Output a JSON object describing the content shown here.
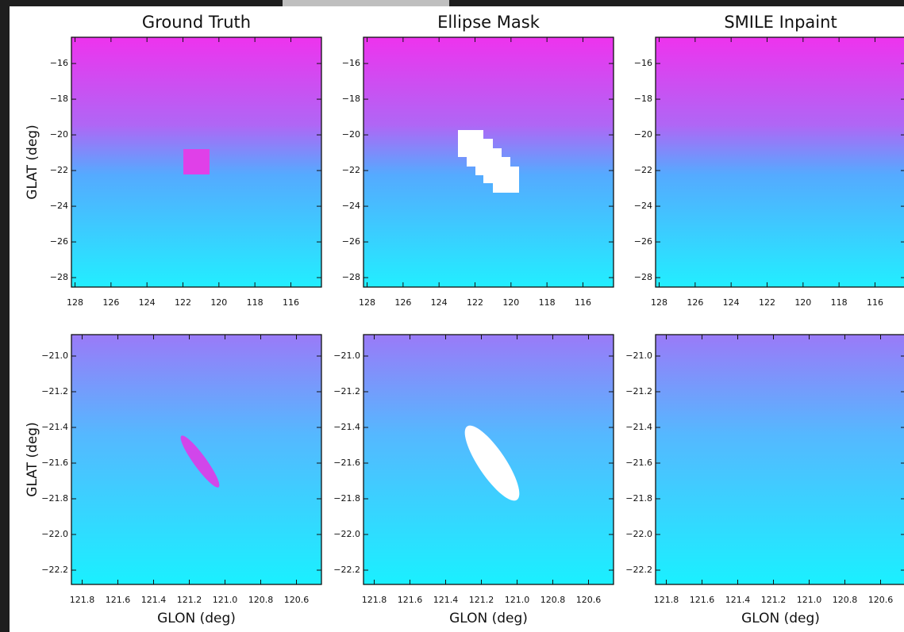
{
  "chart_data": [
    {
      "type": "image",
      "title": "Ground Truth",
      "ylabel": "GLAT (deg)",
      "xlim": [
        128.2,
        114.3
      ],
      "ylim": [
        -28.53,
        -14.53
      ],
      "xticks": [
        128,
        126,
        124,
        122,
        120,
        118,
        116
      ],
      "yticks": [
        {
          "value": -16,
          "label": "−16"
        },
        {
          "value": -18,
          "label": "−18"
        },
        {
          "value": -20,
          "label": "−20"
        },
        {
          "value": -22,
          "label": "−22"
        },
        {
          "value": -24,
          "label": "−24"
        },
        {
          "value": -26,
          "label": "−26"
        },
        {
          "value": -28,
          "label": "−28"
        }
      ]
    },
    {
      "type": "image",
      "title": "Ellipse Mask",
      "xlim": [
        128.2,
        114.3
      ],
      "ylim": [
        -28.53,
        -14.53
      ],
      "xticks": [
        128,
        126,
        124,
        122,
        120,
        118,
        116
      ],
      "yticks": [
        {
          "value": -16,
          "label": "−16"
        },
        {
          "value": -18,
          "label": "−18"
        },
        {
          "value": -20,
          "label": "−20"
        },
        {
          "value": -22,
          "label": "−22"
        },
        {
          "value": -24,
          "label": "−24"
        },
        {
          "value": -26,
          "label": "−26"
        },
        {
          "value": -28,
          "label": "−28"
        }
      ]
    },
    {
      "type": "image",
      "title": "SMILE Inpaint",
      "xlim": [
        128.2,
        114.3
      ],
      "ylim": [
        -28.53,
        -14.53
      ],
      "xticks": [
        128,
        126,
        124,
        122,
        120,
        118,
        116
      ],
      "yticks": [
        {
          "value": -16,
          "label": "−16"
        },
        {
          "value": -18,
          "label": "−18"
        },
        {
          "value": -20,
          "label": "−20"
        },
        {
          "value": -22,
          "label": "−22"
        },
        {
          "value": -24,
          "label": "−24"
        },
        {
          "value": -26,
          "label": "−26"
        },
        {
          "value": -28,
          "label": "−28"
        }
      ]
    },
    {
      "type": "image",
      "xlabel": "GLON (deg)",
      "ylabel": "GLAT (deg)",
      "xlim": [
        121.86,
        120.46
      ],
      "ylim": [
        -22.28,
        -20.88
      ],
      "xticks": [
        121.8,
        121.6,
        121.4,
        121.2,
        {
          "value": 121,
          "label": "121.0"
        },
        120.8,
        120.6
      ],
      "yticks": [
        {
          "value": -21,
          "label": "−21.0"
        },
        {
          "value": -21.2,
          "label": "−21.2"
        },
        {
          "value": -21.4,
          "label": "−21.4"
        },
        {
          "value": -21.6,
          "label": "−21.6"
        },
        {
          "value": -21.8,
          "label": "−21.8"
        },
        {
          "value": -22,
          "label": "−22.0"
        },
        {
          "value": -22.2,
          "label": "−22.2"
        }
      ]
    },
    {
      "type": "image",
      "xlabel": "GLON (deg)",
      "xlim": [
        121.86,
        120.46
      ],
      "ylim": [
        -22.28,
        -20.88
      ],
      "xticks": [
        121.8,
        121.6,
        121.4,
        121.2,
        {
          "value": 121,
          "label": "121.0"
        },
        120.8,
        120.6
      ],
      "yticks": [
        {
          "value": -21,
          "label": "−21.0"
        },
        {
          "value": -21.2,
          "label": "−21.2"
        },
        {
          "value": -21.4,
          "label": "−21.4"
        },
        {
          "value": -21.6,
          "label": "−21.6"
        },
        {
          "value": -21.8,
          "label": "−21.8"
        },
        {
          "value": -22,
          "label": "−22.0"
        },
        {
          "value": -22.2,
          "label": "−22.2"
        }
      ]
    },
    {
      "type": "image",
      "xlabel": "GLON (deg)",
      "xlim": [
        121.86,
        120.46
      ],
      "ylim": [
        -22.28,
        -20.88
      ],
      "xticks": [
        121.8,
        121.6,
        121.4,
        121.2,
        {
          "value": 121,
          "label": "121.0"
        },
        120.8,
        120.6
      ],
      "yticks": [
        {
          "value": -21,
          "label": "−21.0"
        },
        {
          "value": -21.2,
          "label": "−21.2"
        },
        {
          "value": -21.4,
          "label": "−21.4"
        },
        {
          "value": -21.6,
          "label": "−21.6"
        },
        {
          "value": -21.8,
          "label": "−21.8"
        },
        {
          "value": -22,
          "label": "−22.0"
        },
        {
          "value": -22.2,
          "label": "−22.2"
        }
      ]
    }
  ]
}
